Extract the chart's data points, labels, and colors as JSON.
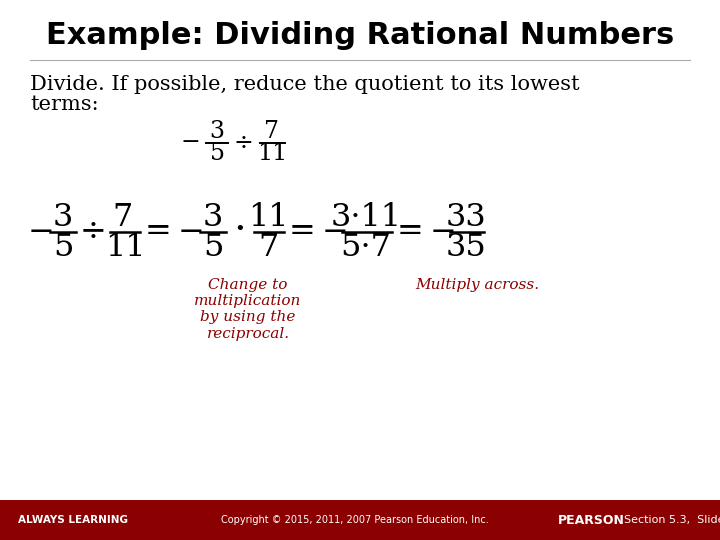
{
  "title": "Example: Dividing Rational Numbers",
  "bg_color": "#ffffff",
  "title_color": "#000000",
  "body_color": "#000000",
  "red_color": "#8B0000",
  "footer_bg": "#8B0000",
  "footer_text_left": "ALWAYS LEARNING",
  "footer_text_center": "Copyright © 2015, 2011, 2007 Pearson Education, Inc.",
  "annotation1": "Change to\nmultiplication\nby using the\nreciprocal.",
  "annotation2": "Multiply across."
}
